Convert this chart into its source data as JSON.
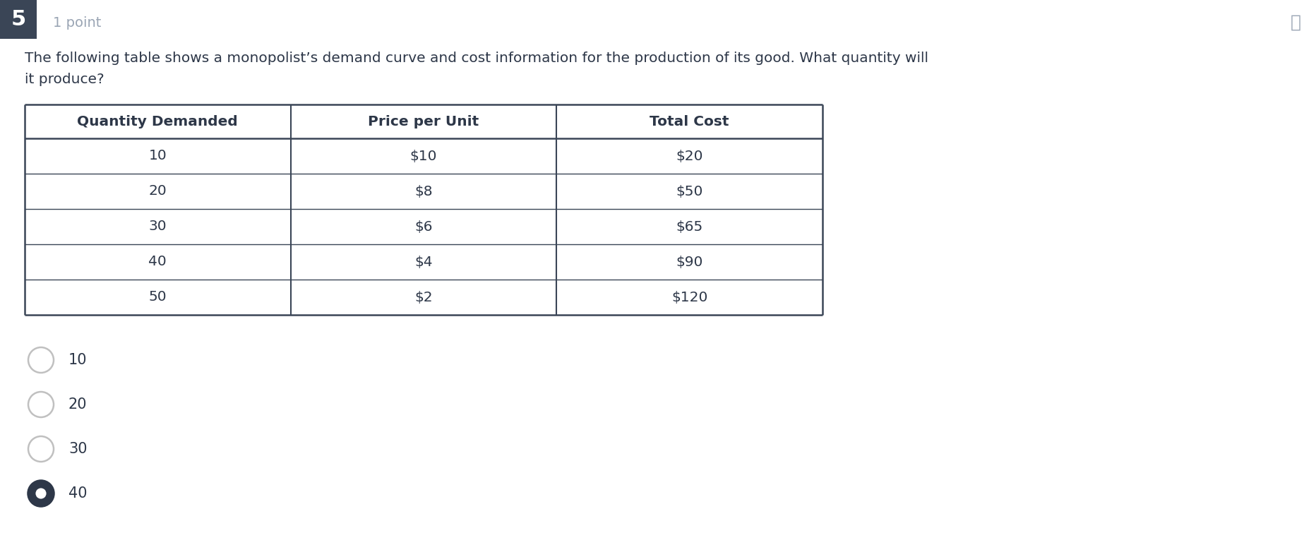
{
  "question_number": "5",
  "points_label": "1 point",
  "question_text_line1": "The following table shows a monopolist’s demand curve and cost information for the production of its good. What quantity will",
  "question_text_line2": "it produce?",
  "table_headers": [
    "Quantity Demanded",
    "Price per Unit",
    "Total Cost"
  ],
  "table_rows": [
    [
      "10",
      "$10",
      "$20"
    ],
    [
      "20",
      "$8",
      "$50"
    ],
    [
      "30",
      "$6",
      "$65"
    ],
    [
      "40",
      "$4",
      "$90"
    ],
    [
      "50",
      "$2",
      "$120"
    ]
  ],
  "answer_options": [
    "10",
    "20",
    "30",
    "40"
  ],
  "selected_answer": "40",
  "bg_color": "#ffffff",
  "text_color": "#2d3748",
  "question_num_bg": "#3a4556",
  "question_num_text": "#ffffff",
  "table_border_color": "#3a4556",
  "answer_text_color": "#2d3748",
  "selected_fill": "#2d3748",
  "unselected_stroke": "#c0c0c0",
  "pin_color": "#9aa5b4",
  "points_color": "#9aa5b4"
}
